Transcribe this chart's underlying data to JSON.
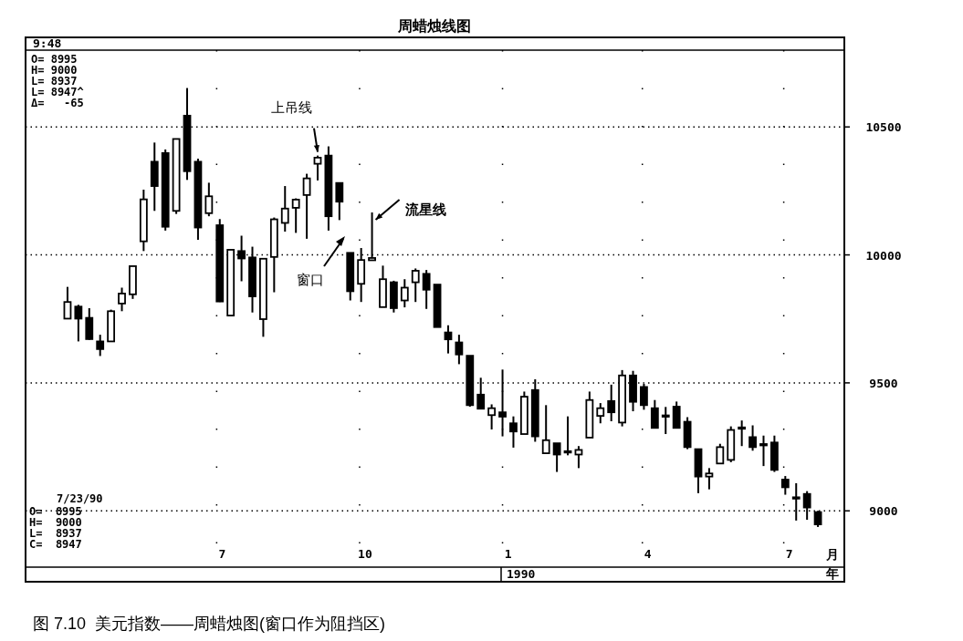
{
  "chart_data": {
    "type": "candlestick",
    "title": "周蜡烛线图",
    "xlabel": "月",
    "x": [
      "1989-03-27",
      "1989-04-03",
      "1989-04-10",
      "1989-04-17",
      "1989-04-24",
      "1989-05-01",
      "1989-05-08",
      "1989-05-15",
      "1989-05-22",
      "1989-05-29",
      "1989-06-05",
      "1989-06-12",
      "1989-06-19",
      "1989-06-26",
      "1989-07-03",
      "1989-07-10",
      "1989-07-17",
      "1989-07-24",
      "1989-07-31",
      "1989-08-07",
      "1989-08-14",
      "1989-08-21",
      "1989-08-28",
      "1989-09-04",
      "1989-09-11",
      "1989-09-18",
      "1989-09-25",
      "1989-10-02",
      "1989-10-09",
      "1989-10-16",
      "1989-10-23",
      "1989-10-30",
      "1989-11-06",
      "1989-11-13",
      "1989-11-20",
      "1989-11-27",
      "1989-12-04",
      "1989-12-11",
      "1989-12-18",
      "1989-12-25",
      "1990-01-01",
      "1990-01-08",
      "1990-01-15",
      "1990-01-22",
      "1990-01-29",
      "1990-02-05",
      "1990-02-12",
      "1990-02-19",
      "1990-02-26",
      "1990-03-05",
      "1990-03-12",
      "1990-03-19",
      "1990-03-26",
      "1990-04-02",
      "1990-04-09",
      "1990-04-16",
      "1990-04-23",
      "1990-04-30",
      "1990-05-07",
      "1990-05-14",
      "1990-05-21",
      "1990-05-28",
      "1990-06-04",
      "1990-06-11",
      "1990-06-18",
      "1990-06-25",
      "1990-07-02",
      "1990-07-09",
      "1990-07-16",
      "1990-07-23"
    ],
    "ohlc": [
      [
        9751,
        9875,
        9751,
        9816
      ],
      [
        9798,
        9805,
        9662,
        9751
      ],
      [
        9754,
        9792,
        9668,
        9671
      ],
      [
        9662,
        9688,
        9605,
        9632
      ],
      [
        9662,
        9786,
        9662,
        9780
      ],
      [
        9810,
        9872,
        9780,
        9849
      ],
      [
        9846,
        9956,
        9828,
        9956
      ],
      [
        10053,
        10255,
        10015,
        10217
      ],
      [
        10364,
        10439,
        10172,
        10269
      ],
      [
        10398,
        10412,
        10095,
        10110
      ],
      [
        10172,
        10453,
        10160,
        10453
      ],
      [
        10544,
        10652,
        10293,
        10327
      ],
      [
        10364,
        10376,
        10059,
        10107
      ],
      [
        10163,
        10282,
        10151,
        10229
      ],
      [
        10116,
        10140,
        9816,
        9818
      ],
      [
        9763,
        10020,
        9763,
        10020
      ],
      [
        10015,
        10075,
        9897,
        9986
      ],
      [
        9990,
        10032,
        9775,
        9838
      ],
      [
        9749,
        9985,
        9680,
        9985
      ],
      [
        9992,
        10146,
        9854,
        10139
      ],
      [
        10125,
        10269,
        10091,
        10181
      ],
      [
        10184,
        10221,
        10086,
        10216
      ],
      [
        10234,
        10317,
        10063,
        10299
      ],
      [
        10356,
        10388,
        10291,
        10380
      ],
      [
        10388,
        10424,
        10095,
        10151
      ],
      [
        10281,
        10281,
        10136,
        10208
      ],
      [
        10008,
        10008,
        9822,
        9858
      ],
      [
        9887,
        10027,
        9816,
        9980
      ],
      [
        9979,
        10166,
        9979,
        9988
      ],
      [
        9796,
        9958,
        9796,
        9905
      ],
      [
        9893,
        9899,
        9775,
        9792
      ],
      [
        9822,
        9905,
        9795,
        9872
      ],
      [
        9893,
        9947,
        9816,
        9938
      ],
      [
        9926,
        9941,
        9789,
        9864
      ],
      [
        9884,
        9884,
        9718,
        9718
      ],
      [
        9697,
        9725,
        9615,
        9670
      ],
      [
        9658,
        9688,
        9573,
        9611
      ],
      [
        9606,
        9606,
        9407,
        9413
      ],
      [
        9454,
        9520,
        9399,
        9399
      ],
      [
        9374,
        9416,
        9318,
        9401
      ],
      [
        9385,
        9552,
        9291,
        9368
      ],
      [
        9342,
        9369,
        9247,
        9310
      ],
      [
        9300,
        9466,
        9300,
        9446
      ],
      [
        9472,
        9514,
        9270,
        9291
      ],
      [
        9225,
        9413,
        9225,
        9276
      ],
      [
        9264,
        9264,
        9152,
        9220
      ],
      [
        9233,
        9369,
        9217,
        9229
      ],
      [
        9220,
        9253,
        9167,
        9238
      ],
      [
        9286,
        9466,
        9286,
        9433
      ],
      [
        9371,
        9421,
        9342,
        9401
      ],
      [
        9429,
        9493,
        9350,
        9385
      ],
      [
        9345,
        9550,
        9330,
        9529
      ],
      [
        9529,
        9547,
        9389,
        9426
      ],
      [
        9484,
        9496,
        9395,
        9413
      ],
      [
        9401,
        9433,
        9324,
        9324
      ],
      [
        9373,
        9406,
        9300,
        9369
      ],
      [
        9407,
        9427,
        9324,
        9324
      ],
      [
        9348,
        9366,
        9241,
        9249
      ],
      [
        9241,
        9241,
        9069,
        9134
      ],
      [
        9134,
        9167,
        9084,
        9146
      ],
      [
        9185,
        9262,
        9185,
        9249
      ],
      [
        9199,
        9330,
        9190,
        9316
      ],
      [
        9326,
        9353,
        9253,
        9322
      ],
      [
        9288,
        9334,
        9235,
        9249
      ],
      [
        9261,
        9294,
        9175,
        9257
      ],
      [
        9267,
        9294,
        9152,
        9160
      ],
      [
        9122,
        9136,
        9063,
        9092
      ],
      [
        9053,
        9108,
        8962,
        9049
      ],
      [
        9066,
        9077,
        8965,
        9013
      ],
      [
        8995,
        9000,
        8937,
        8947
      ]
    ],
    "xlim": [
      "1989-02-28",
      "1990-08-09"
    ],
    "xticks": [
      {
        "value": "1989-07-01",
        "label": "7"
      },
      {
        "value": "1989-10-01",
        "label": "10"
      },
      {
        "value": "1990-01-01",
        "label": "1"
      },
      {
        "value": "1990-04-01",
        "label": "4"
      },
      {
        "value": "1990-07-01",
        "label": "7"
      }
    ],
    "ylim": [
      8780,
      10800
    ],
    "yticks": [
      9000,
      9500,
      10000,
      10500
    ],
    "grid": true,
    "annotations": [
      "9:48",
      "O= 8995",
      "H= 9000",
      "L= 8937",
      "L= 8947^",
      "Δ=   -65",
      "7/23/90",
      "O=  8995",
      "H=  9000",
      "L=  8937",
      "C=  8947",
      "1990",
      "年",
      "图 7.10  美元指数——周蜡烛图(窗口作为阻挡区)",
      {
        "text": "上吊线",
        "x": "1989-09-04",
        "y": 10388
      },
      {
        "text": "流星线",
        "x": "1989-10-09",
        "y": 10166
      },
      "窗口"
    ]
  }
}
